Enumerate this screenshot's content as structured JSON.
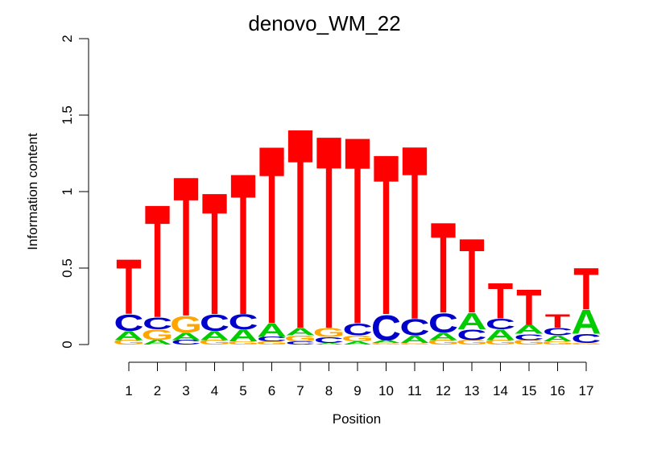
{
  "chart_data": {
    "type": "sequence-logo",
    "title": "denovo_WM_22",
    "xlabel": "Position",
    "ylabel": "Information content",
    "ylim": [
      0,
      2
    ],
    "y_ticks": [
      "0",
      "0.5",
      "1",
      "1.5",
      "2"
    ],
    "x_ticks": [
      "1",
      "2",
      "3",
      "4",
      "5",
      "6",
      "7",
      "8",
      "9",
      "10",
      "11",
      "12",
      "13",
      "14",
      "15",
      "16",
      "17"
    ],
    "colors": {
      "A": "#00cc00",
      "C": "#0000cc",
      "G": "#ffa500",
      "T": "#ff0000"
    },
    "positions": [
      {
        "stack": [
          [
            "G",
            0.03
          ],
          [
            "A",
            0.06
          ],
          [
            "C",
            0.11
          ],
          [
            "T",
            0.37
          ]
        ]
      },
      {
        "stack": [
          [
            "A",
            0.03
          ],
          [
            "G",
            0.07
          ],
          [
            "C",
            0.08
          ],
          [
            "T",
            0.76
          ]
        ]
      },
      {
        "stack": [
          [
            "C",
            0.03
          ],
          [
            "A",
            0.05
          ],
          [
            "G",
            0.11
          ],
          [
            "T",
            0.94
          ]
        ]
      },
      {
        "stack": [
          [
            "G",
            0.03
          ],
          [
            "A",
            0.06
          ],
          [
            "C",
            0.11
          ],
          [
            "T",
            0.82
          ]
        ]
      },
      {
        "stack": [
          [
            "G",
            0.02
          ],
          [
            "A",
            0.08
          ],
          [
            "C",
            0.1
          ],
          [
            "T",
            0.95
          ]
        ]
      },
      {
        "stack": [
          [
            "G",
            0.02
          ],
          [
            "C",
            0.03
          ],
          [
            "A",
            0.09
          ],
          [
            "T",
            1.2
          ]
        ]
      },
      {
        "stack": [
          [
            "C",
            0.02
          ],
          [
            "G",
            0.04
          ],
          [
            "A",
            0.05
          ],
          [
            "T",
            1.35
          ]
        ]
      },
      {
        "stack": [
          [
            "A",
            0.01
          ],
          [
            "C",
            0.04
          ],
          [
            "G",
            0.06
          ],
          [
            "T",
            1.3
          ]
        ]
      },
      {
        "stack": [
          [
            "A",
            0.02
          ],
          [
            "G",
            0.04
          ],
          [
            "C",
            0.08
          ],
          [
            "T",
            1.26
          ]
        ]
      },
      {
        "stack": [
          [
            "G",
            0.01
          ],
          [
            "A",
            0.02
          ],
          [
            "C",
            0.17
          ],
          [
            "T",
            1.08
          ]
        ]
      },
      {
        "stack": [
          [
            "G",
            0.01
          ],
          [
            "A",
            0.05
          ],
          [
            "C",
            0.11
          ],
          [
            "T",
            1.17
          ]
        ]
      },
      {
        "stack": [
          [
            "G",
            0.03
          ],
          [
            "A",
            0.05
          ],
          [
            "C",
            0.13
          ],
          [
            "T",
            0.61
          ]
        ]
      },
      {
        "stack": [
          [
            "G",
            0.03
          ],
          [
            "C",
            0.07
          ],
          [
            "A",
            0.11
          ],
          [
            "T",
            0.5
          ]
        ]
      },
      {
        "stack": [
          [
            "G",
            0.03
          ],
          [
            "A",
            0.07
          ],
          [
            "C",
            0.07
          ],
          [
            "T",
            0.24
          ]
        ]
      },
      {
        "stack": [
          [
            "G",
            0.03
          ],
          [
            "C",
            0.04
          ],
          [
            "A",
            0.06
          ],
          [
            "T",
            0.24
          ]
        ]
      },
      {
        "stack": [
          [
            "G",
            0.02
          ],
          [
            "A",
            0.04
          ],
          [
            "C",
            0.05
          ],
          [
            "T",
            0.09
          ]
        ]
      },
      {
        "stack": [
          [
            "G",
            0.01
          ],
          [
            "C",
            0.06
          ],
          [
            "A",
            0.16
          ],
          [
            "T",
            0.28
          ]
        ]
      }
    ]
  }
}
